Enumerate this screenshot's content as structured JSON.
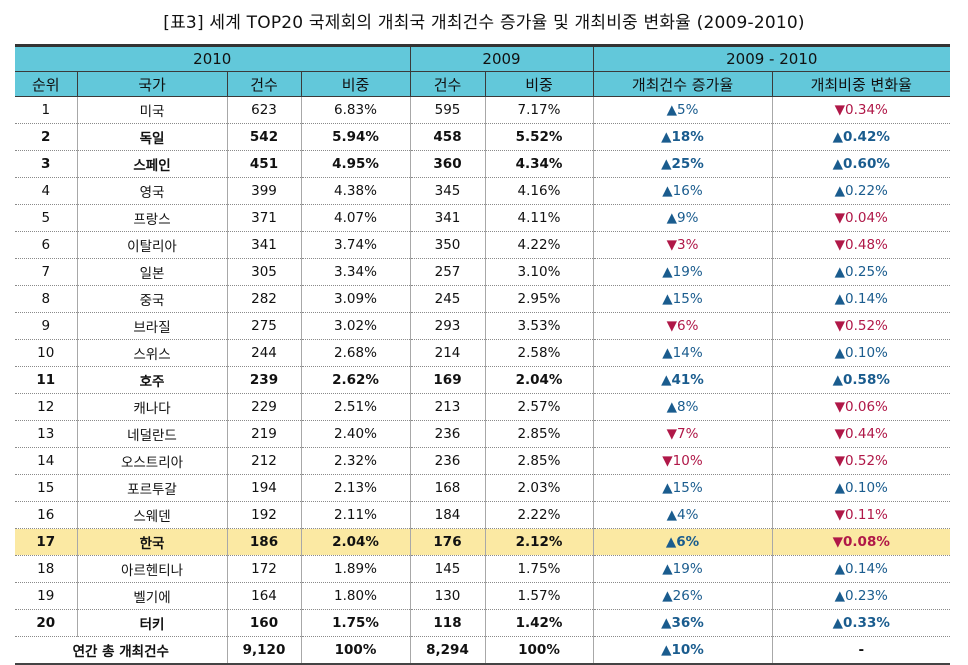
{
  "title": "[표3] 세계 TOP20 국제회의 개최국 개최건수 증가율 및 개최비중 변화율 (2009-2010)",
  "group_headers": [
    "2010",
    "2009",
    "2009 - 2010"
  ],
  "columns": [
    "순위",
    "국가",
    "건수",
    "비중",
    "건수",
    "비중",
    "개최건수 증가율",
    "개최비중 변화율"
  ],
  "colors": {
    "header_bg": "#62c8da",
    "highlight_bg": "#fbe9a3",
    "up": "#1a5c8e",
    "down": "#b01848"
  },
  "rows": [
    {
      "rank": "1",
      "country": "미국",
      "c2010": "623",
      "s2010": "6.83%",
      "c2009": "595",
      "s2009": "7.17%",
      "growth": "▲5%",
      "share_change": "▼0.34%",
      "bold": false,
      "hl": false,
      "gdir": "up",
      "sdir": "down"
    },
    {
      "rank": "2",
      "country": "독일",
      "c2010": "542",
      "s2010": "5.94%",
      "c2009": "458",
      "s2009": "5.52%",
      "growth": "▲18%",
      "share_change": "▲0.42%",
      "bold": true,
      "hl": false,
      "gdir": "up",
      "sdir": "up"
    },
    {
      "rank": "3",
      "country": "스페인",
      "c2010": "451",
      "s2010": "4.95%",
      "c2009": "360",
      "s2009": "4.34%",
      "growth": "▲25%",
      "share_change": "▲0.60%",
      "bold": true,
      "hl": false,
      "gdir": "up",
      "sdir": "up"
    },
    {
      "rank": "4",
      "country": "영국",
      "c2010": "399",
      "s2010": "4.38%",
      "c2009": "345",
      "s2009": "4.16%",
      "growth": "▲16%",
      "share_change": "▲0.22%",
      "bold": false,
      "hl": false,
      "gdir": "up",
      "sdir": "up"
    },
    {
      "rank": "5",
      "country": "프랑스",
      "c2010": "371",
      "s2010": "4.07%",
      "c2009": "341",
      "s2009": "4.11%",
      "growth": "▲9%",
      "share_change": "▼0.04%",
      "bold": false,
      "hl": false,
      "gdir": "up",
      "sdir": "down"
    },
    {
      "rank": "6",
      "country": "이탈리아",
      "c2010": "341",
      "s2010": "3.74%",
      "c2009": "350",
      "s2009": "4.22%",
      "growth": "▼3%",
      "share_change": "▼0.48%",
      "bold": false,
      "hl": false,
      "gdir": "down",
      "sdir": "down"
    },
    {
      "rank": "7",
      "country": "일본",
      "c2010": "305",
      "s2010": "3.34%",
      "c2009": "257",
      "s2009": "3.10%",
      "growth": "▲19%",
      "share_change": "▲0.25%",
      "bold": false,
      "hl": false,
      "gdir": "up",
      "sdir": "up"
    },
    {
      "rank": "8",
      "country": "중국",
      "c2010": "282",
      "s2010": "3.09%",
      "c2009": "245",
      "s2009": "2.95%",
      "growth": "▲15%",
      "share_change": "▲0.14%",
      "bold": false,
      "hl": false,
      "gdir": "up",
      "sdir": "up"
    },
    {
      "rank": "9",
      "country": "브라질",
      "c2010": "275",
      "s2010": "3.02%",
      "c2009": "293",
      "s2009": "3.53%",
      "growth": "▼6%",
      "share_change": "▼0.52%",
      "bold": false,
      "hl": false,
      "gdir": "down",
      "sdir": "down"
    },
    {
      "rank": "10",
      "country": "스위스",
      "c2010": "244",
      "s2010": "2.68%",
      "c2009": "214",
      "s2009": "2.58%",
      "growth": "▲14%",
      "share_change": "▲0.10%",
      "bold": false,
      "hl": false,
      "gdir": "up",
      "sdir": "up"
    },
    {
      "rank": "11",
      "country": "호주",
      "c2010": "239",
      "s2010": "2.62%",
      "c2009": "169",
      "s2009": "2.04%",
      "growth": "▲41%",
      "share_change": "▲0.58%",
      "bold": true,
      "hl": false,
      "gdir": "up",
      "sdir": "up"
    },
    {
      "rank": "12",
      "country": "캐나다",
      "c2010": "229",
      "s2010": "2.51%",
      "c2009": "213",
      "s2009": "2.57%",
      "growth": "▲8%",
      "share_change": "▼0.06%",
      "bold": false,
      "hl": false,
      "gdir": "up",
      "sdir": "down"
    },
    {
      "rank": "13",
      "country": "네덜란드",
      "c2010": "219",
      "s2010": "2.40%",
      "c2009": "236",
      "s2009": "2.85%",
      "growth": "▼7%",
      "share_change": "▼0.44%",
      "bold": false,
      "hl": false,
      "gdir": "down",
      "sdir": "down"
    },
    {
      "rank": "14",
      "country": "오스트리아",
      "c2010": "212",
      "s2010": "2.32%",
      "c2009": "236",
      "s2009": "2.85%",
      "growth": "▼10%",
      "share_change": "▼0.52%",
      "bold": false,
      "hl": false,
      "gdir": "down",
      "sdir": "down"
    },
    {
      "rank": "15",
      "country": "포르투갈",
      "c2010": "194",
      "s2010": "2.13%",
      "c2009": "168",
      "s2009": "2.03%",
      "growth": "▲15%",
      "share_change": "▲0.10%",
      "bold": false,
      "hl": false,
      "gdir": "up",
      "sdir": "up"
    },
    {
      "rank": "16",
      "country": "스웨덴",
      "c2010": "192",
      "s2010": "2.11%",
      "c2009": "184",
      "s2009": "2.22%",
      "growth": "▲4%",
      "share_change": "▼0.11%",
      "bold": false,
      "hl": false,
      "gdir": "up",
      "sdir": "down"
    },
    {
      "rank": "17",
      "country": "한국",
      "c2010": "186",
      "s2010": "2.04%",
      "c2009": "176",
      "s2009": "2.12%",
      "growth": "▲6%",
      "share_change": "▼0.08%",
      "bold": true,
      "hl": true,
      "gdir": "up",
      "sdir": "down"
    },
    {
      "rank": "18",
      "country": "아르헨티나",
      "c2010": "172",
      "s2010": "1.89%",
      "c2009": "145",
      "s2009": "1.75%",
      "growth": "▲19%",
      "share_change": "▲0.14%",
      "bold": false,
      "hl": false,
      "gdir": "up",
      "sdir": "up"
    },
    {
      "rank": "19",
      "country": "벨기에",
      "c2010": "164",
      "s2010": "1.80%",
      "c2009": "130",
      "s2009": "1.57%",
      "growth": "▲26%",
      "share_change": "▲0.23%",
      "bold": false,
      "hl": false,
      "gdir": "up",
      "sdir": "up"
    },
    {
      "rank": "20",
      "country": "터키",
      "c2010": "160",
      "s2010": "1.75%",
      "c2009": "118",
      "s2009": "1.42%",
      "growth": "▲36%",
      "share_change": "▲0.33%",
      "bold": true,
      "hl": false,
      "gdir": "up",
      "sdir": "up"
    }
  ],
  "total": {
    "label": "연간 총 개최건수",
    "c2010": "9,120",
    "s2010": "100%",
    "c2009": "8,294",
    "s2009": "100%",
    "growth": "▲10%",
    "share_change": "-"
  }
}
